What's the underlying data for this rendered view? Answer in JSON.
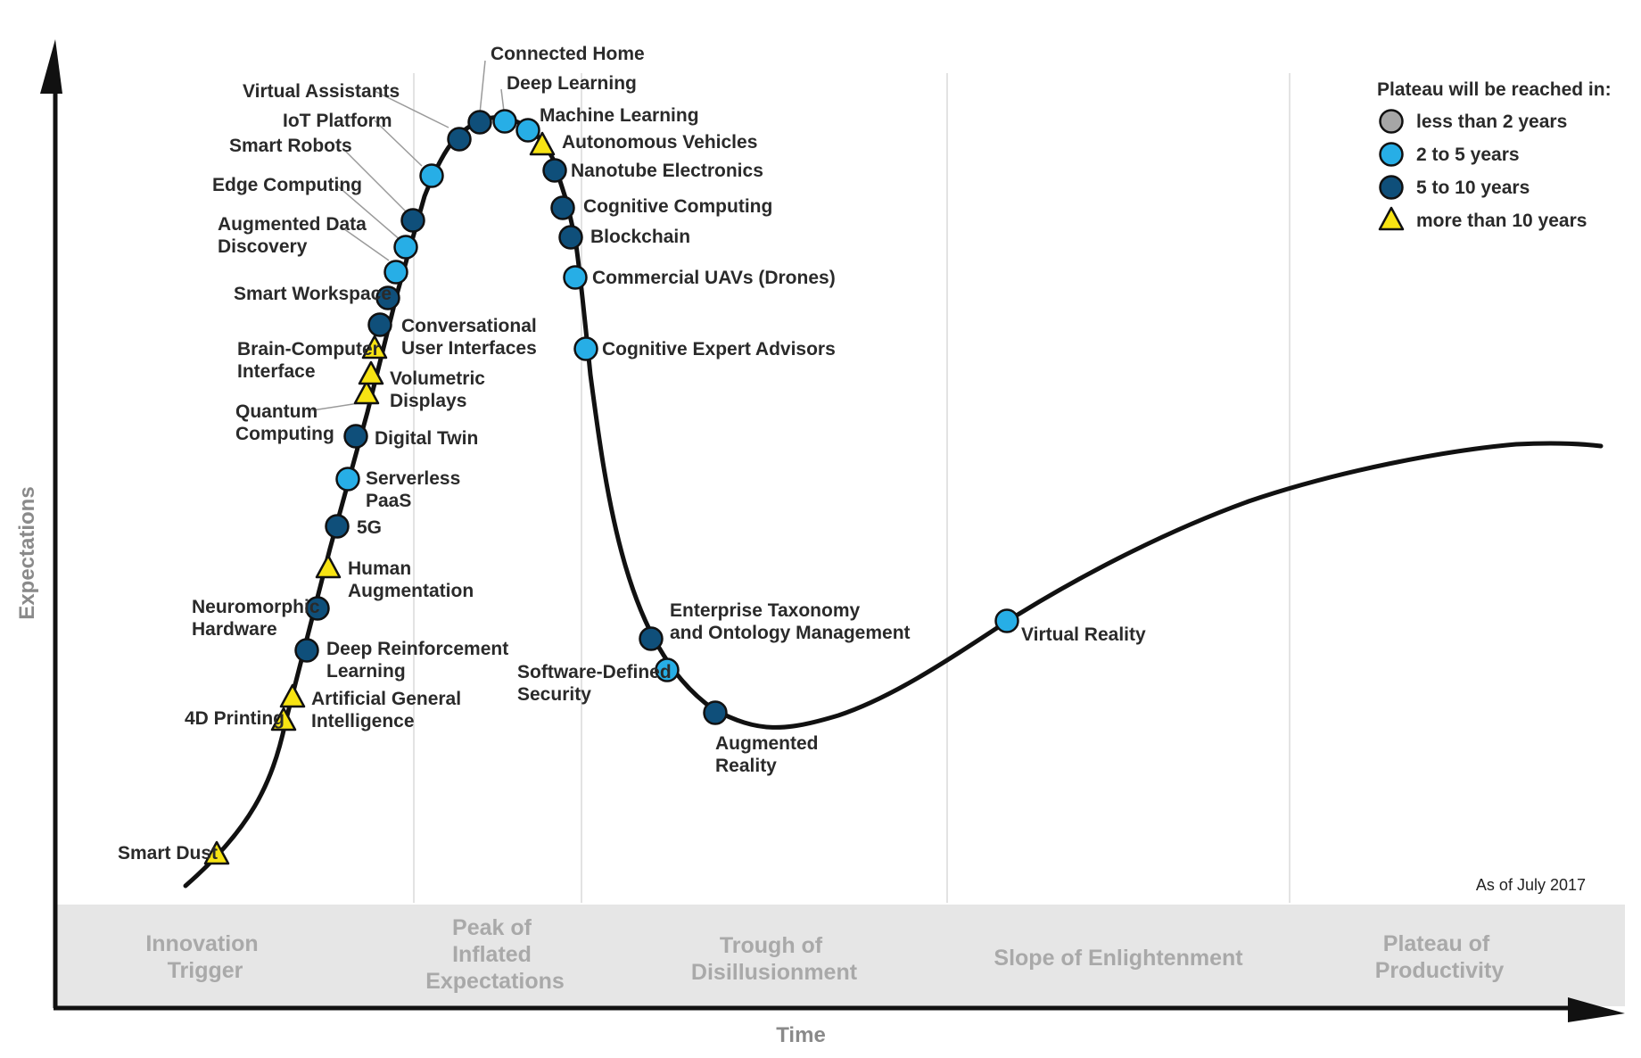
{
  "colors": {
    "lt2": "#a6a6a6",
    "2to5": "#27aee6",
    "5to10": "#0f4f7a",
    "gt10": "#f7e313"
  },
  "axes": {
    "y_label": "Expectations",
    "x_label": "Time"
  },
  "as_of": "As of July 2017",
  "phases": [
    {
      "lines": [
        "Innovation",
        "Trigger"
      ]
    },
    {
      "lines": [
        "Peak of",
        "Inflated",
        "Expectations"
      ]
    },
    {
      "lines": [
        "Trough of",
        "Disillusionment"
      ]
    },
    {
      "lines": [
        "Slope of Enlightenment"
      ]
    },
    {
      "lines": [
        "Plateau of",
        "Productivity"
      ]
    }
  ],
  "legend": {
    "title": "Plateau will be reached in:",
    "items": [
      {
        "label": "less than 2 years",
        "type": "lt2"
      },
      {
        "label": "2 to 5 years",
        "type": "2to5"
      },
      {
        "label": "5 to 10 years",
        "type": "5to10"
      },
      {
        "label": "more than 10 years",
        "type": "gt10"
      }
    ]
  },
  "technologies": [
    {
      "name": "Smart Dust",
      "lines": [
        "Smart Dust"
      ],
      "type": "gt10"
    },
    {
      "name": "4D Printing",
      "lines": [
        "4D Printing"
      ],
      "type": "gt10"
    },
    {
      "name": "Artificial General Intelligence",
      "lines": [
        "Artificial General",
        "Intelligence"
      ],
      "type": "gt10"
    },
    {
      "name": "Deep Reinforcement Learning",
      "lines": [
        "Deep Reinforcement",
        "Learning"
      ],
      "type": "5to10"
    },
    {
      "name": "Neuromorphic Hardware",
      "lines": [
        "Neuromorphic",
        "Hardware"
      ],
      "type": "5to10"
    },
    {
      "name": "Human Augmentation",
      "lines": [
        "Human",
        "Augmentation"
      ],
      "type": "gt10"
    },
    {
      "name": "5G",
      "lines": [
        "5G"
      ],
      "type": "5to10"
    },
    {
      "name": "Serverless PaaS",
      "lines": [
        "Serverless",
        "PaaS"
      ],
      "type": "2to5"
    },
    {
      "name": "Digital Twin",
      "lines": [
        "Digital Twin"
      ],
      "type": "5to10"
    },
    {
      "name": "Quantum Computing",
      "lines": [
        "Quantum",
        "Computing"
      ],
      "type": "gt10"
    },
    {
      "name": "Volumetric Displays",
      "lines": [
        "Volumetric",
        "Displays"
      ],
      "type": "gt10"
    },
    {
      "name": "Brain-Computer Interface",
      "lines": [
        "Brain-Computer",
        "Interface"
      ],
      "type": "gt10"
    },
    {
      "name": "Conversational User Interfaces",
      "lines": [
        "Conversational",
        "User Interfaces"
      ],
      "type": "5to10"
    },
    {
      "name": "Smart Workspace",
      "lines": [
        "Smart Workspace"
      ],
      "type": "5to10"
    },
    {
      "name": "Augmented Data Discovery",
      "lines": [
        "Augmented Data",
        "Discovery"
      ],
      "type": "2to5"
    },
    {
      "name": "Edge Computing",
      "lines": [
        "Edge Computing"
      ],
      "type": "2to5"
    },
    {
      "name": "Smart Robots",
      "lines": [
        "Smart Robots"
      ],
      "type": "5to10"
    },
    {
      "name": "IoT Platform",
      "lines": [
        "IoT Platform"
      ],
      "type": "2to5"
    },
    {
      "name": "Virtual Assistants",
      "lines": [
        "Virtual Assistants"
      ],
      "type": "5to10"
    },
    {
      "name": "Connected Home",
      "lines": [
        "Connected Home"
      ],
      "type": "5to10"
    },
    {
      "name": "Deep Learning",
      "lines": [
        "Deep Learning"
      ],
      "type": "2to5"
    },
    {
      "name": "Machine Learning",
      "lines": [
        "Machine Learning"
      ],
      "type": "2to5"
    },
    {
      "name": "Autonomous Vehicles",
      "lines": [
        "Autonomous Vehicles"
      ],
      "type": "gt10"
    },
    {
      "name": "Nanotube Electronics",
      "lines": [
        "Nanotube Electronics"
      ],
      "type": "5to10"
    },
    {
      "name": "Cognitive Computing",
      "lines": [
        "Cognitive Computing"
      ],
      "type": "5to10"
    },
    {
      "name": "Blockchain",
      "lines": [
        "Blockchain"
      ],
      "type": "5to10"
    },
    {
      "name": "Commercial UAVs (Drones)",
      "lines": [
        "Commercial UAVs (Drones)"
      ],
      "type": "2to5"
    },
    {
      "name": "Cognitive Expert Advisors",
      "lines": [
        "Cognitive Expert Advisors"
      ],
      "type": "2to5"
    },
    {
      "name": "Enterprise Taxonomy and Ontology Management",
      "lines": [
        "Enterprise Taxonomy",
        "and Ontology Management"
      ],
      "type": "5to10"
    },
    {
      "name": "Software-Defined Security",
      "lines": [
        "Software-Defined",
        "Security"
      ],
      "type": "2to5"
    },
    {
      "name": "Augmented Reality",
      "lines": [
        "Augmented",
        "Reality"
      ],
      "type": "5to10"
    },
    {
      "name": "Virtual Reality",
      "lines": [
        "Virtual Reality"
      ],
      "type": "2to5"
    }
  ]
}
